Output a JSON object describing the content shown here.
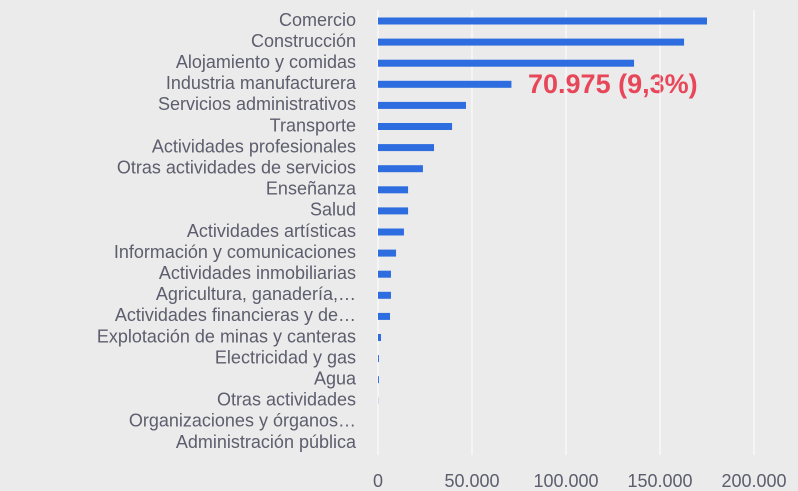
{
  "chart_data": {
    "type": "bar",
    "orientation": "horizontal",
    "color": "#2e6de0",
    "grid": true,
    "categories": [
      "Comercio",
      "Construcción",
      "Alojamiento y comidas",
      "Industria manufacturera",
      "Servicios administrativos",
      "Transporte",
      "Actividades profesionales",
      "Otras actividades de servicios",
      "Enseñanza",
      "Salud",
      "Actividades artísticas",
      "Información y comunicaciones",
      "Actividades inmobiliarias",
      "Agricultura, ganadería,…",
      "Actividades financieras y de…",
      "Explotación de minas y canteras",
      "Electricidad y gas",
      "Agua",
      "Otras actividades",
      "Organizaciones y órganos…",
      "Administración pública"
    ],
    "values": [
      175000,
      162800,
      136200,
      70975,
      46800,
      39400,
      29800,
      23900,
      16000,
      16000,
      13800,
      9600,
      6900,
      6900,
      6400,
      1600,
      500,
      500,
      100,
      0,
      0
    ],
    "annotation": "70.975 (9,3%)",
    "xlim": [
      0,
      220000
    ],
    "xticks": [
      0,
      {
        "value": 50000,
        "label": "50.000"
      },
      {
        "value": 100000,
        "label": "100.000"
      },
      {
        "value": 150000,
        "label": "150.000"
      },
      {
        "value": 200000,
        "label": "200.000"
      }
    ]
  }
}
